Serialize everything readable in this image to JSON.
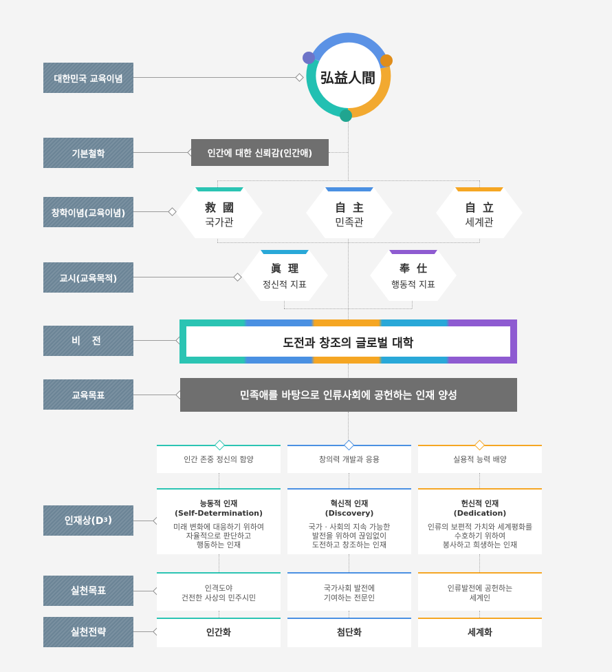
{
  "labels": {
    "l1": "대한민국 교육이념",
    "l2": "기본철학",
    "l3": "창학이념(교육이념)",
    "l4": "교시(교육목적)",
    "l5": "비 전",
    "l6": "교육목표",
    "l7": "인재상(D",
    "l7_sup": "3",
    "l7_end": ")",
    "l8": "실천목표",
    "l9": "실천전략"
  },
  "circle_text": "弘益人間",
  "philosophy": "인간에 대한 신뢰감(인간애)",
  "founding": [
    {
      "hanja": "救國",
      "text": "국가관",
      "color": "#2bc4b3"
    },
    {
      "hanja": "自主",
      "text": "민족관",
      "color": "#4a90e2"
    },
    {
      "hanja": "自立",
      "text": "세계관",
      "color": "#f5a623"
    }
  ],
  "motto": [
    {
      "hanja": "眞理",
      "text": "정신적 지표",
      "color": "#29a8d8"
    },
    {
      "hanja": "奉仕",
      "text": "행동적 지표",
      "color": "#8e5bd1"
    }
  ],
  "vision": "도전과 창조의 글로벌 대학",
  "goal": "민족애를 바탕으로 인류사회에 공헌하는 인재 양성",
  "objectives": [
    "인간 존중 정신의 함양",
    "창의력 개발과 응용",
    "실용적 능력 배양"
  ],
  "talents": [
    {
      "title": "능동적 인재",
      "sub": "(Self-Determination)",
      "lines": [
        "미래 변화에 대응하기 위하여",
        "자율적으로 판단하고",
        "행동하는 인재"
      ]
    },
    {
      "title": "혁신적 인재",
      "sub": "(Discovery)",
      "lines": [
        "국가 · 사회의 지속 가능한",
        "발전을 위하여 끊임없이",
        "도전하고 창조하는 인재"
      ]
    },
    {
      "title": "헌신적 인재",
      "sub": "(Dedication)",
      "lines": [
        "인류의 보편적 가치와 세계평화를",
        "수호하기 위하여",
        "봉사하고 희생하는 인재"
      ]
    }
  ],
  "practice_goals": [
    [
      "인격도야",
      "건전한 사상의 민주시민"
    ],
    [
      "국가사회 발전에",
      "기여하는 전문인"
    ],
    [
      "인류발전에 공헌하는",
      "세계인"
    ]
  ],
  "strategies": [
    "인간화",
    "첨단화",
    "세계화"
  ],
  "colors": {
    "teal": "#2bc4b3",
    "blue": "#4a90e2",
    "orange": "#f5a623",
    "purple": "#8e5bd1",
    "label": "#6b8496",
    "gray": "#6f6f6f"
  }
}
